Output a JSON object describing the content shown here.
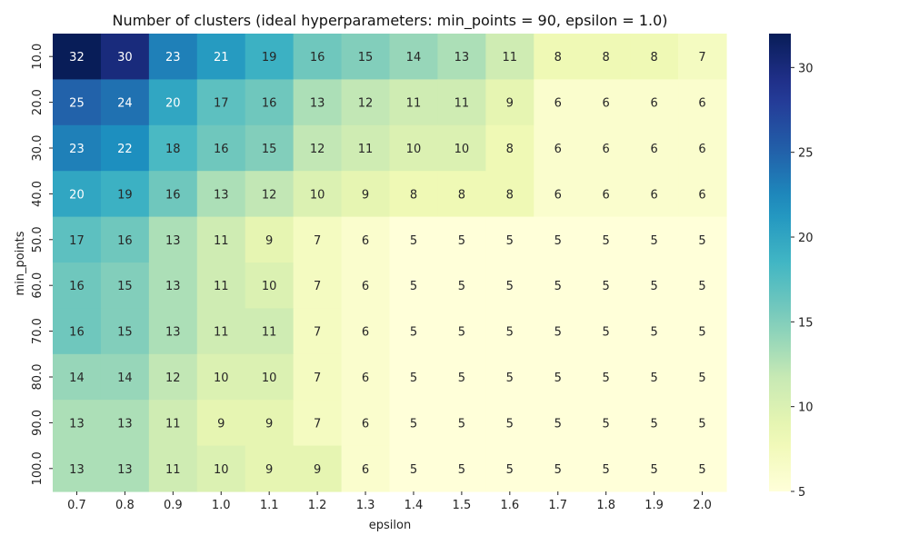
{
  "chart_data": {
    "type": "heatmap",
    "title": "Number of clusters (ideal hyperparameters: min_points = 90, epsilon = 1.0)",
    "xlabel": "epsilon",
    "ylabel": "min_points",
    "x_categories": [
      "0.7",
      "0.8",
      "0.9",
      "1.0",
      "1.1",
      "1.2",
      "1.3",
      "1.4",
      "1.5",
      "1.6",
      "1.7",
      "1.8",
      "1.9",
      "2.0"
    ],
    "y_categories": [
      "10.0",
      "20.0",
      "30.0",
      "40.0",
      "50.0",
      "60.0",
      "70.0",
      "80.0",
      "90.0",
      "100.0"
    ],
    "values": [
      [
        32,
        30,
        23,
        21,
        19,
        16,
        15,
        14,
        13,
        11,
        8,
        8,
        8,
        7
      ],
      [
        25,
        24,
        20,
        17,
        16,
        13,
        12,
        11,
        11,
        9,
        6,
        6,
        6,
        6
      ],
      [
        23,
        22,
        18,
        16,
        15,
        12,
        11,
        10,
        10,
        8,
        6,
        6,
        6,
        6
      ],
      [
        20,
        19,
        16,
        13,
        12,
        10,
        9,
        8,
        8,
        8,
        6,
        6,
        6,
        6
      ],
      [
        17,
        16,
        13,
        11,
        9,
        7,
        6,
        5,
        5,
        5,
        5,
        5,
        5,
        5
      ],
      [
        16,
        15,
        13,
        11,
        10,
        7,
        6,
        5,
        5,
        5,
        5,
        5,
        5,
        5
      ],
      [
        16,
        15,
        13,
        11,
        11,
        7,
        6,
        5,
        5,
        5,
        5,
        5,
        5,
        5
      ],
      [
        14,
        14,
        12,
        10,
        10,
        7,
        6,
        5,
        5,
        5,
        5,
        5,
        5,
        5
      ],
      [
        13,
        13,
        11,
        9,
        9,
        7,
        6,
        5,
        5,
        5,
        5,
        5,
        5,
        5
      ],
      [
        13,
        13,
        11,
        10,
        9,
        9,
        6,
        5,
        5,
        5,
        5,
        5,
        5,
        5
      ]
    ],
    "colormap": "YlGnBu",
    "vmin": 5,
    "vmax": 32,
    "colorbar_ticks": [
      5,
      10,
      15,
      20,
      25,
      30
    ],
    "colorbar_tick_labels": [
      "5",
      "10",
      "15",
      "20",
      "25",
      "30"
    ],
    "grid": false
  }
}
